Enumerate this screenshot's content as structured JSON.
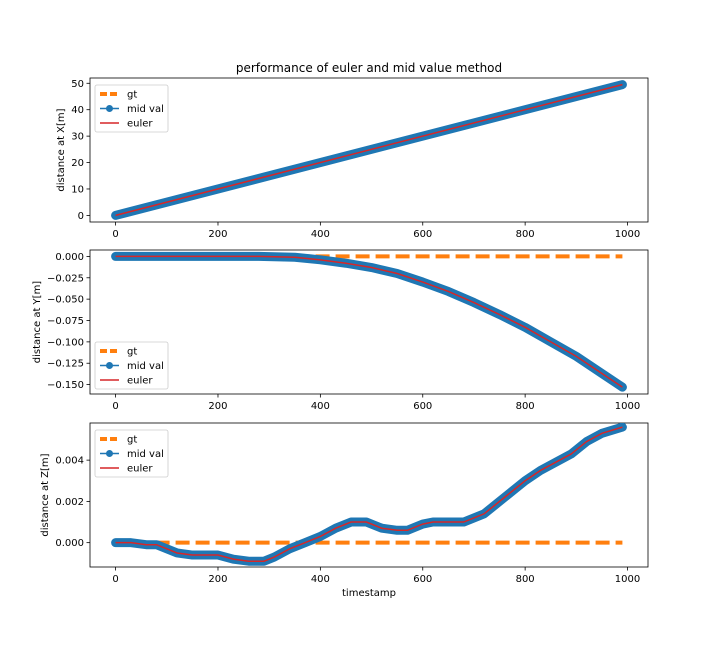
{
  "chart_data": {
    "title": "performance of euler and mid value method",
    "xlabel": "timestamp",
    "legend": {
      "placement": "upper-left",
      "entries": [
        "gt",
        "mid val",
        "euler"
      ]
    },
    "colors": {
      "gt": "#ff7f0e",
      "mid_val": "#1f77b4",
      "euler": "#d62728"
    },
    "x_ticks": [
      0,
      200,
      400,
      600,
      800,
      1000
    ],
    "subplots": [
      {
        "type": "line",
        "ylabel": "distance at X[m]",
        "xlim": [
          -50,
          1040
        ],
        "ylim": [
          -2.5,
          52
        ],
        "y_ticks": [
          0,
          10,
          20,
          30,
          40,
          50
        ],
        "y_tick_labels": [
          "0",
          "10",
          "20",
          "30",
          "40",
          "50"
        ],
        "series": [
          {
            "name": "gt",
            "style": "dashed",
            "points": [
              [
                0,
                0
              ],
              [
                990,
                49.5
              ]
            ]
          },
          {
            "name": "mid val",
            "style": "line-marker",
            "points": [
              [
                0,
                0
              ],
              [
                990,
                49.5
              ]
            ]
          },
          {
            "name": "euler",
            "style": "line",
            "points": [
              [
                0,
                0
              ],
              [
                990,
                49.5
              ]
            ]
          }
        ]
      },
      {
        "type": "line",
        "ylabel": "distance at Y[m]",
        "xlim": [
          -50,
          1040
        ],
        "ylim": [
          -0.161,
          0.0075
        ],
        "y_ticks": [
          0.0,
          -0.025,
          -0.05,
          -0.075,
          -0.1,
          -0.125,
          -0.15
        ],
        "y_tick_labels": [
          "0.000",
          "−0.025",
          "−0.050",
          "−0.075",
          "−0.100",
          "−0.125",
          "−0.150"
        ],
        "series": [
          {
            "name": "gt",
            "style": "dashed",
            "points": [
              [
                0,
                0
              ],
              [
                990,
                0
              ]
            ]
          },
          {
            "name": "mid val",
            "style": "line-marker",
            "points": [
              [
                0,
                0
              ],
              [
                100,
                0
              ],
              [
                200,
                0
              ],
              [
                280,
                0
              ],
              [
                300,
                -0.0003
              ],
              [
                350,
                -0.001
              ],
              [
                400,
                -0.004
              ],
              [
                450,
                -0.008
              ],
              [
                500,
                -0.013
              ],
              [
                550,
                -0.02
              ],
              [
                600,
                -0.03
              ],
              [
                650,
                -0.041
              ],
              [
                700,
                -0.054
              ],
              [
                750,
                -0.068
              ],
              [
                800,
                -0.083
              ],
              [
                850,
                -0.1
              ],
              [
                900,
                -0.117
              ],
              [
                950,
                -0.137
              ],
              [
                990,
                -0.153
              ]
            ]
          },
          {
            "name": "euler",
            "style": "line",
            "points": [
              [
                0,
                0
              ],
              [
                100,
                0
              ],
              [
                200,
                0
              ],
              [
                280,
                0
              ],
              [
                300,
                -0.0003
              ],
              [
                350,
                -0.001
              ],
              [
                400,
                -0.004
              ],
              [
                450,
                -0.008
              ],
              [
                500,
                -0.013
              ],
              [
                550,
                -0.02
              ],
              [
                600,
                -0.03
              ],
              [
                650,
                -0.041
              ],
              [
                700,
                -0.054
              ],
              [
                750,
                -0.068
              ],
              [
                800,
                -0.083
              ],
              [
                850,
                -0.1
              ],
              [
                900,
                -0.117
              ],
              [
                950,
                -0.137
              ],
              [
                990,
                -0.153
              ]
            ]
          }
        ]
      },
      {
        "type": "line",
        "ylabel": "distance at Z[m]",
        "xlim": [
          -50,
          1040
        ],
        "ylim": [
          -0.00118,
          0.0058
        ],
        "y_ticks": [
          0.0,
          0.002,
          0.004
        ],
        "y_tick_labels": [
          "0.000",
          "0.002",
          "0.004"
        ],
        "series": [
          {
            "name": "gt",
            "style": "dashed",
            "points": [
              [
                0,
                0
              ],
              [
                990,
                0
              ]
            ]
          },
          {
            "name": "mid val",
            "style": "line-marker",
            "points": [
              [
                0,
                0
              ],
              [
                30,
                0
              ],
              [
                60,
                -0.0001
              ],
              [
                80,
                -0.0001
              ],
              [
                100,
                -0.0003
              ],
              [
                120,
                -0.0005
              ],
              [
                150,
                -0.0006
              ],
              [
                180,
                -0.0006
              ],
              [
                200,
                -0.0006
              ],
              [
                230,
                -0.0008
              ],
              [
                260,
                -0.0009
              ],
              [
                290,
                -0.0009
              ],
              [
                310,
                -0.0007
              ],
              [
                340,
                -0.0003
              ],
              [
                370,
                0.0
              ],
              [
                400,
                0.0003
              ],
              [
                430,
                0.0007
              ],
              [
                460,
                0.001
              ],
              [
                490,
                0.001
              ],
              [
                520,
                0.0007
              ],
              [
                550,
                0.0006
              ],
              [
                570,
                0.0006
              ],
              [
                600,
                0.0009
              ],
              [
                620,
                0.001
              ],
              [
                650,
                0.001
              ],
              [
                680,
                0.001
              ],
              [
                700,
                0.0012
              ],
              [
                720,
                0.0014
              ],
              [
                750,
                0.002
              ],
              [
                780,
                0.0026
              ],
              [
                800,
                0.003
              ],
              [
                830,
                0.0035
              ],
              [
                860,
                0.0039
              ],
              [
                890,
                0.0043
              ],
              [
                920,
                0.0049
              ],
              [
                950,
                0.0053
              ],
              [
                990,
                0.0056
              ]
            ]
          },
          {
            "name": "euler",
            "style": "line",
            "points": [
              [
                0,
                0
              ],
              [
                30,
                0
              ],
              [
                60,
                -0.0001
              ],
              [
                80,
                -0.0001
              ],
              [
                100,
                -0.0003
              ],
              [
                120,
                -0.0005
              ],
              [
                150,
                -0.0006
              ],
              [
                180,
                -0.0006
              ],
              [
                200,
                -0.0006
              ],
              [
                230,
                -0.0008
              ],
              [
                260,
                -0.0009
              ],
              [
                290,
                -0.0009
              ],
              [
                310,
                -0.0007
              ],
              [
                340,
                -0.0003
              ],
              [
                370,
                0.0
              ],
              [
                400,
                0.0003
              ],
              [
                430,
                0.0007
              ],
              [
                460,
                0.001
              ],
              [
                490,
                0.001
              ],
              [
                520,
                0.0007
              ],
              [
                550,
                0.0006
              ],
              [
                570,
                0.0006
              ],
              [
                600,
                0.0009
              ],
              [
                620,
                0.001
              ],
              [
                650,
                0.001
              ],
              [
                680,
                0.001
              ],
              [
                700,
                0.0012
              ],
              [
                720,
                0.0014
              ],
              [
                750,
                0.002
              ],
              [
                780,
                0.0026
              ],
              [
                800,
                0.003
              ],
              [
                830,
                0.0035
              ],
              [
                860,
                0.0039
              ],
              [
                890,
                0.0043
              ],
              [
                920,
                0.0049
              ],
              [
                950,
                0.0053
              ],
              [
                990,
                0.0056
              ]
            ]
          }
        ]
      }
    ]
  }
}
